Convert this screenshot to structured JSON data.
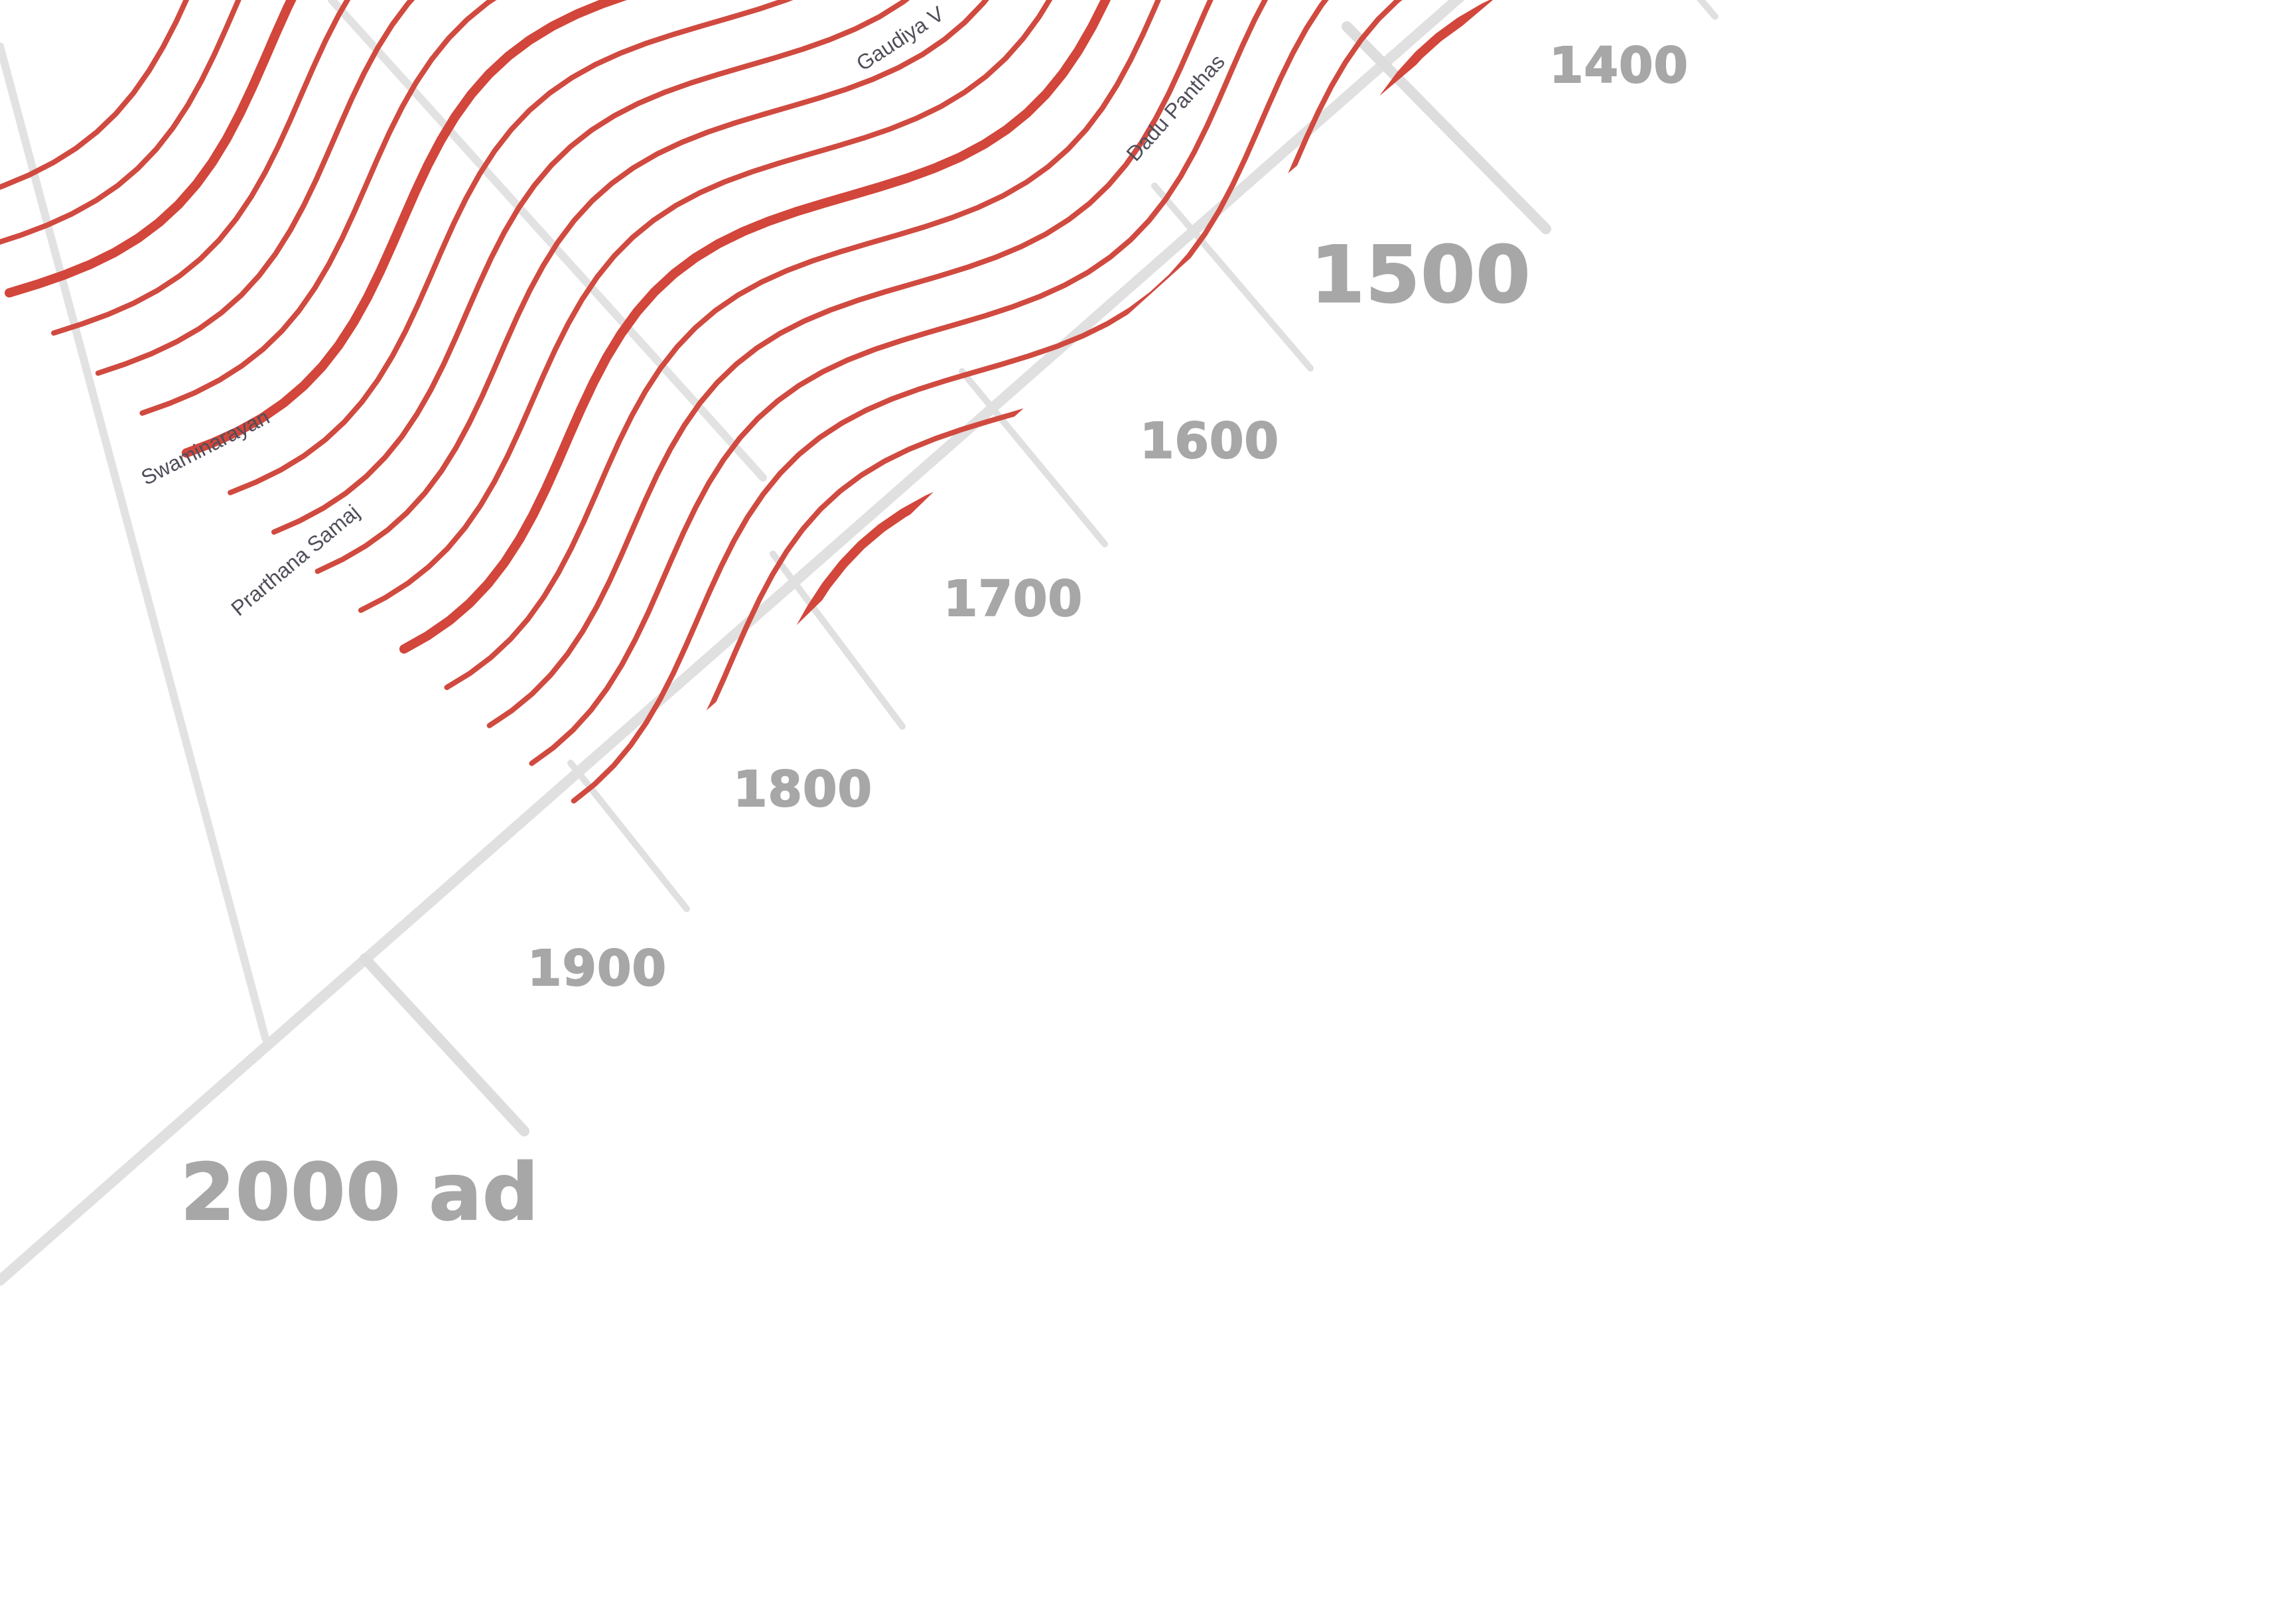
{
  "colors": {
    "stream": "#d04a40",
    "stream_bold": "#d2463b",
    "grid": "#e0e0e0",
    "year_text": "#a7a7a7",
    "label_text": "#4f4f5a",
    "background": "#ffffff"
  },
  "timeline": {
    "years": [
      {
        "label": "1400",
        "size": "small"
      },
      {
        "label": "1500",
        "size": "large"
      },
      {
        "label": "1600",
        "size": "small"
      },
      {
        "label": "1700",
        "size": "small"
      },
      {
        "label": "1800",
        "size": "small"
      },
      {
        "label": "1900",
        "size": "small"
      },
      {
        "label": "2000 ad",
        "size": "large"
      }
    ]
  },
  "branches": [
    {
      "name": "Gaudiya V"
    },
    {
      "name": "Dadu Panthas"
    },
    {
      "name": "Swaminarayan"
    },
    {
      "name": "Prarthana Samaj"
    }
  ]
}
